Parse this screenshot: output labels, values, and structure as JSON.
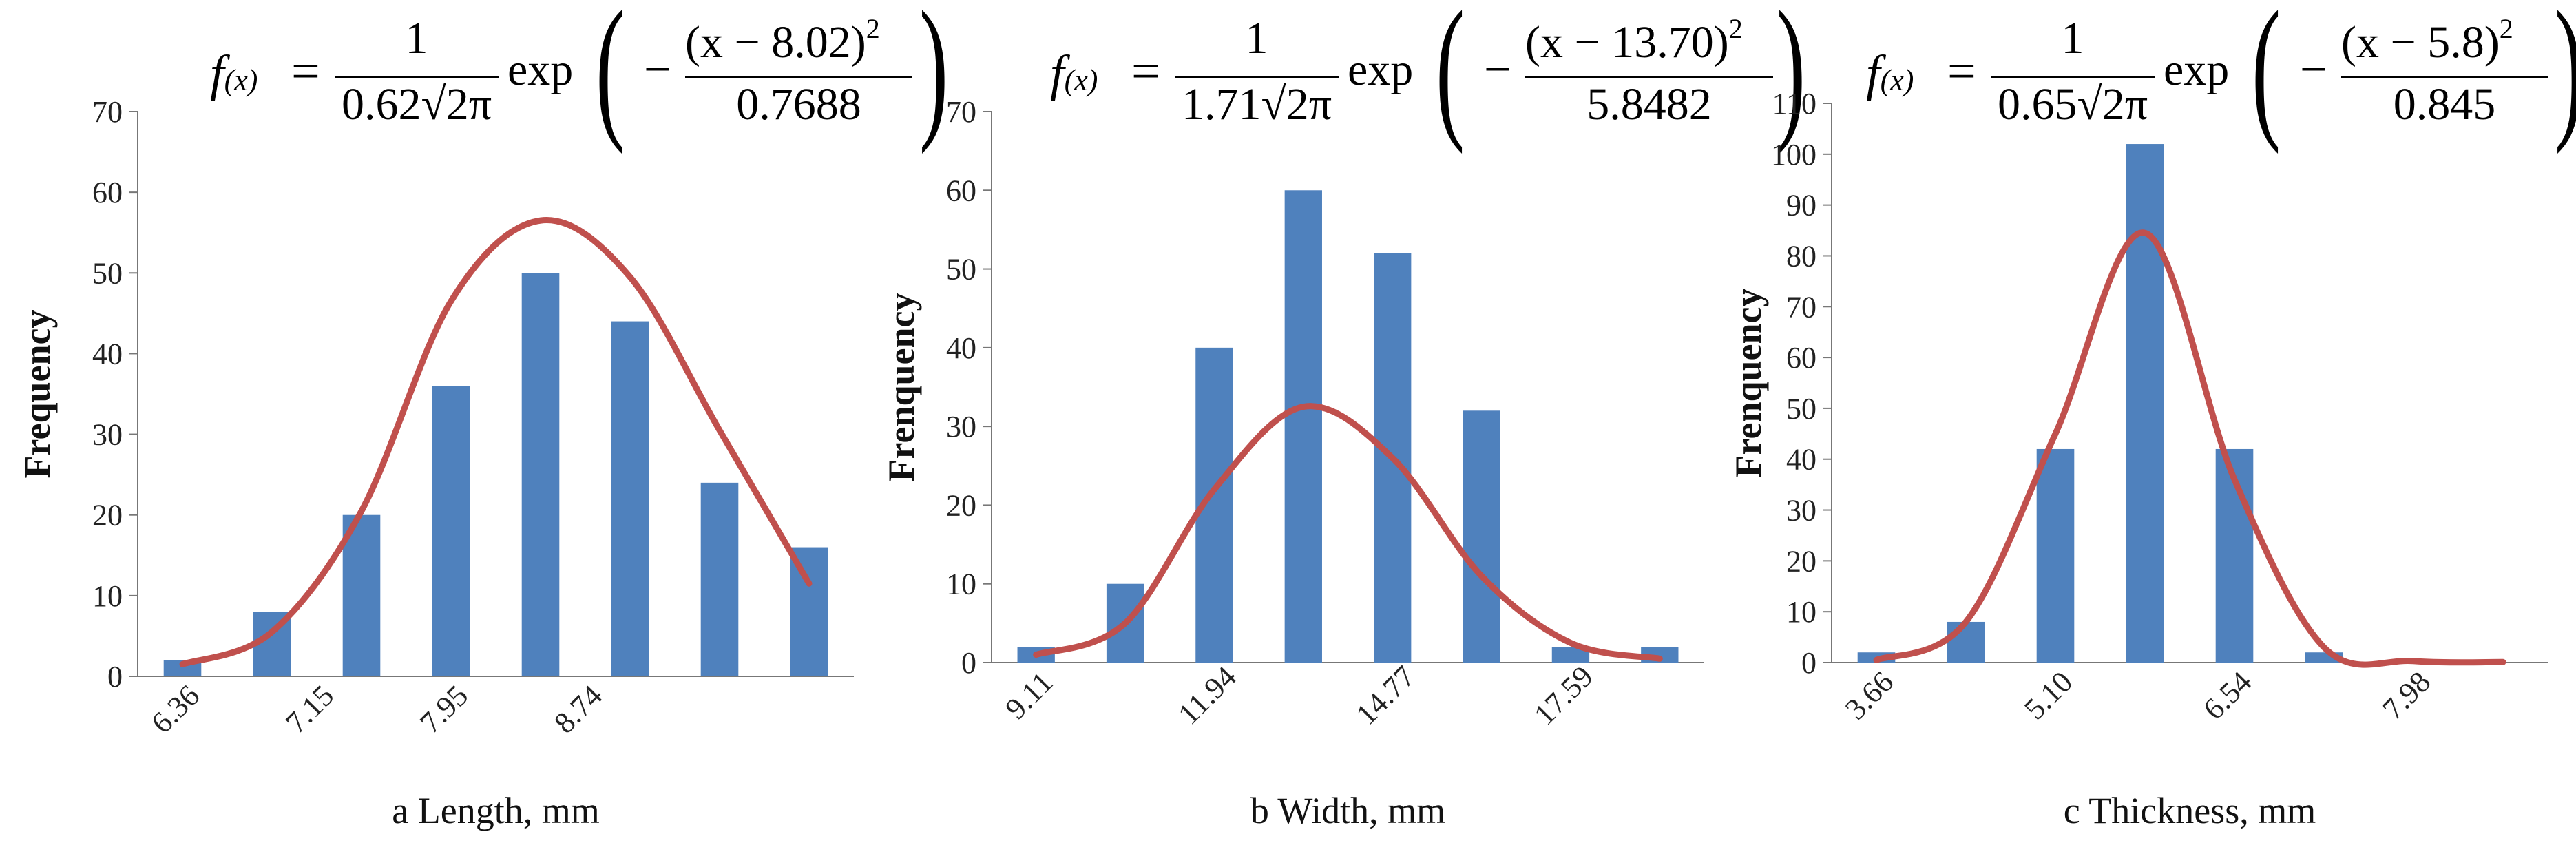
{
  "chart_data": [
    {
      "type": "bar",
      "subtitle": "a",
      "xlabel": "a Length, mm",
      "ylabel": "Frequency",
      "ylim": [
        0,
        70
      ],
      "y_ticks": [
        0,
        10,
        20,
        30,
        40,
        50,
        60,
        70
      ],
      "x_tick_labels": [
        "6.36",
        "7.15",
        "7.95",
        "8.74"
      ],
      "values": [
        2,
        8,
        20,
        36,
        50,
        44,
        24,
        16
      ],
      "curve": [
        1.5,
        5.5,
        20.5,
        46.5,
        56.5,
        49.5,
        30.5,
        11.5
      ],
      "equation": {
        "lhs": "f",
        "sub": "(x)",
        "numerator": "1",
        "denominator": "0.62√2π",
        "func": "exp",
        "mean_expr": "(x − 8.02)",
        "power": "2",
        "variance_den": "0.7688"
      },
      "bar_color": "#4F81BD",
      "curve_color": "#C0504D"
    },
    {
      "type": "bar",
      "subtitle": "b",
      "xlabel": "b Width, mm",
      "ylabel": "Frenquency",
      "ylim": [
        0,
        70
      ],
      "y_ticks": [
        0,
        10,
        20,
        30,
        40,
        50,
        60,
        70
      ],
      "x_tick_labels": [
        "9.11",
        "11.94",
        "14.77",
        "17.59"
      ],
      "values": [
        2,
        10,
        40,
        60,
        52,
        32,
        2,
        2
      ],
      "curve": [
        1.0,
        5.0,
        22.0,
        32.5,
        26.0,
        11.0,
        2.5,
        0.5
      ],
      "equation": {
        "lhs": "f",
        "sub": "(x)",
        "numerator": "1",
        "denominator": "1.71√2π",
        "func": "exp",
        "mean_expr": "(x − 13.70)",
        "power": "2",
        "variance_den": "5.8482"
      },
      "bar_color": "#4F81BD",
      "curve_color": "#C0504D"
    },
    {
      "type": "bar",
      "subtitle": "c",
      "xlabel": "c Thickness, mm",
      "ylabel": "Frenquency",
      "ylim": [
        0,
        110
      ],
      "y_ticks": [
        0,
        10,
        20,
        30,
        40,
        50,
        60,
        70,
        80,
        90,
        100,
        110
      ],
      "x_tick_labels": [
        "3.66",
        "5.10",
        "6.54",
        "7.98"
      ],
      "values": [
        2,
        8,
        42,
        102,
        42,
        2
      ],
      "curve": [
        0.5,
        8.0,
        45.0,
        84.5,
        36.0,
        3.0,
        0.3,
        0.1
      ],
      "equation": {
        "lhs": "f",
        "sub": "(x)",
        "numerator": "1",
        "denominator": "0.65√2π",
        "func": "exp",
        "mean_expr": "(x − 5.8)",
        "power": "2",
        "variance_den": "0.845"
      },
      "bar_color": "#4F81BD",
      "curve_color": "#C0504D"
    }
  ]
}
